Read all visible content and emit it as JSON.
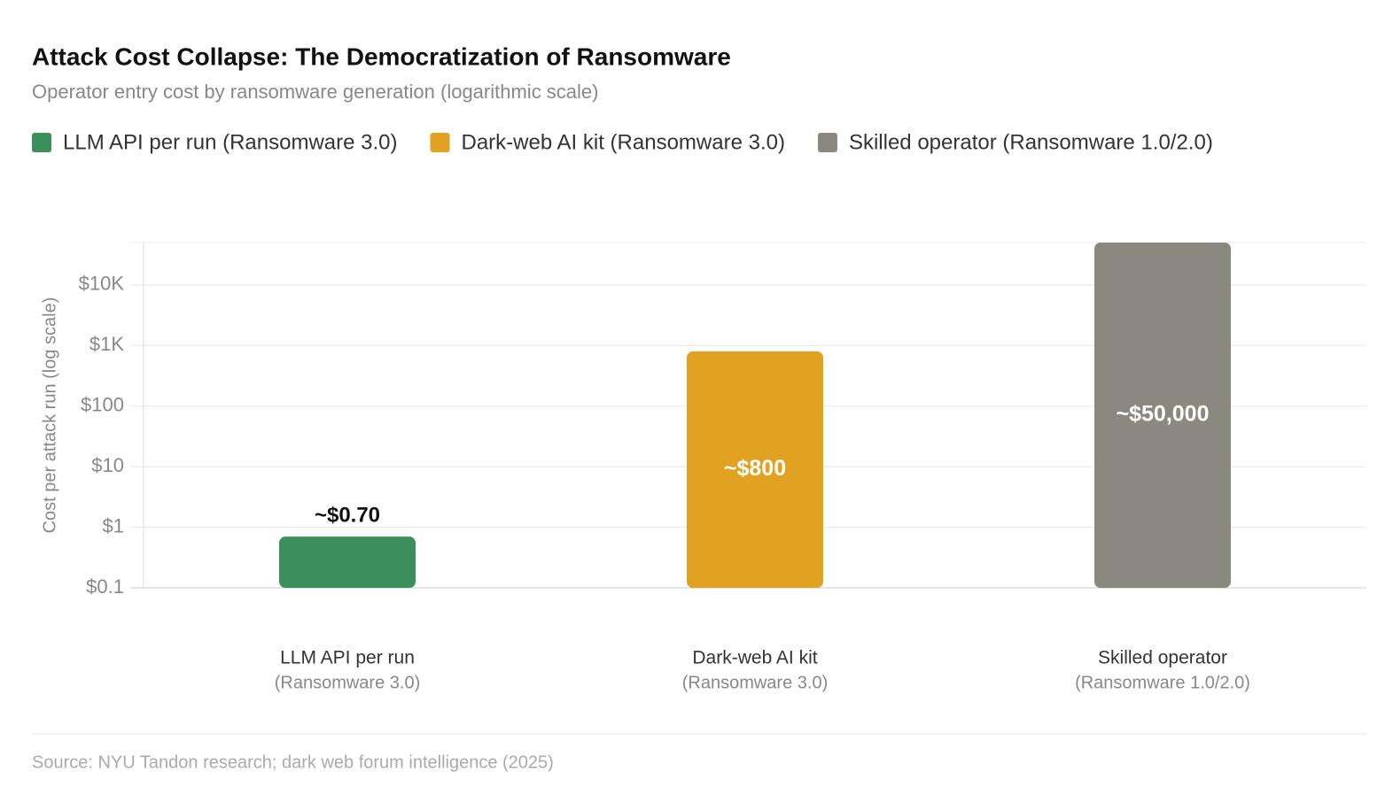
{
  "chart_data": {
    "type": "bar",
    "title": "Attack Cost Collapse: The Democratization of Ransomware",
    "subtitle": "Operator entry cost by ransomware generation (logarithmic scale)",
    "legend": [
      "LLM API per run (Ransomware 3.0)",
      "Dark-web AI kit (Ransomware 3.0)",
      "Skilled operator (Ransomware 1.0/2.0)"
    ],
    "categories": [
      "LLM API per run",
      "Dark-web AI kit",
      "Skilled operator"
    ],
    "category_sublabels": [
      "(Ransomware 3.0)",
      "(Ransomware 3.0)",
      "(Ransomware 1.0/2.0)"
    ],
    "values": [
      0.7,
      800,
      50000
    ],
    "value_labels": [
      "~$0.70",
      "~$800",
      "~$50,000"
    ],
    "colors": [
      "#3a8f5c",
      "#e0a220",
      "#8a8980"
    ],
    "y_label": "Cost per attack run (log scale)",
    "log_scale": true,
    "ylim": [
      0.1,
      50000
    ],
    "yticks": [
      {
        "value": 0.1,
        "label": "$0.1"
      },
      {
        "value": 1,
        "label": "$1"
      },
      {
        "value": 10,
        "label": "$10"
      },
      {
        "value": 100,
        "label": "$100"
      },
      {
        "value": 1000,
        "label": "$1K"
      },
      {
        "value": 10000,
        "label": "$10K"
      }
    ],
    "grid": true,
    "source": "Source: NYU Tandon research; dark web forum intelligence (2025)"
  }
}
